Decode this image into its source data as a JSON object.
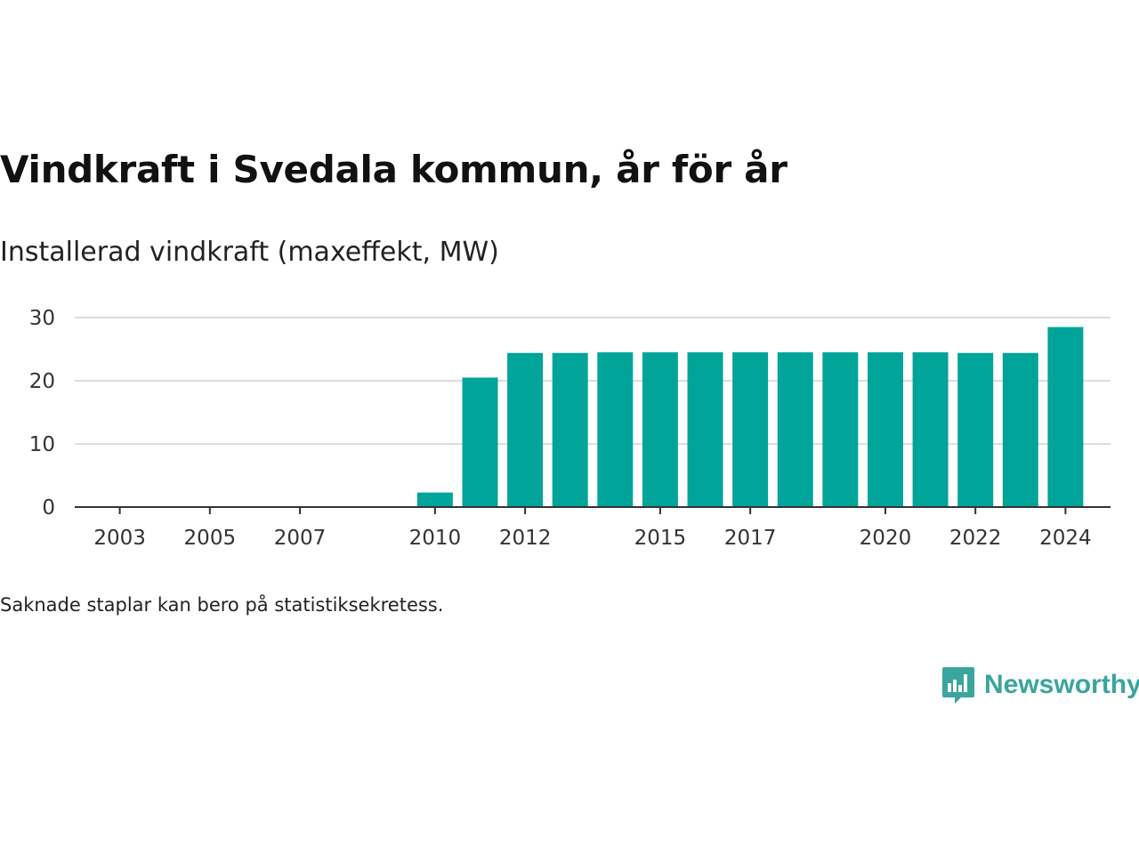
{
  "header": {
    "title": "Vindkraft i Svedala kommun, år för år",
    "subtitle": "Installerad vindkraft (maxeffekt, MW)"
  },
  "footnote": "Saknade staplar kan bero på statistiksekretess.",
  "brand": {
    "name": "Newsworthy",
    "logo_icon": "bar-chart-speech-bubble-icon"
  },
  "colors": {
    "bar": "#00a499",
    "grid": "#dddddd",
    "axis": "#333333",
    "brand": "#3aa59d"
  },
  "chart_data": {
    "type": "bar",
    "title": "",
    "xlabel": "",
    "ylabel": "",
    "ylim": [
      0,
      30
    ],
    "yticks": [
      0,
      10,
      20,
      30
    ],
    "xtick_labels": [
      "2003",
      "2005",
      "2007",
      "2010",
      "2012",
      "2015",
      "2017",
      "2020",
      "2022",
      "2024"
    ],
    "x_range": [
      2002,
      2025
    ],
    "grid": true,
    "categories": [
      2010,
      2011,
      2012,
      2013,
      2014,
      2015,
      2016,
      2017,
      2018,
      2019,
      2020,
      2021,
      2022,
      2023,
      2024
    ],
    "values": [
      2.3,
      20.5,
      24.4,
      24.4,
      24.5,
      24.5,
      24.5,
      24.5,
      24.5,
      24.5,
      24.5,
      24.5,
      24.4,
      24.4,
      28.5
    ]
  }
}
